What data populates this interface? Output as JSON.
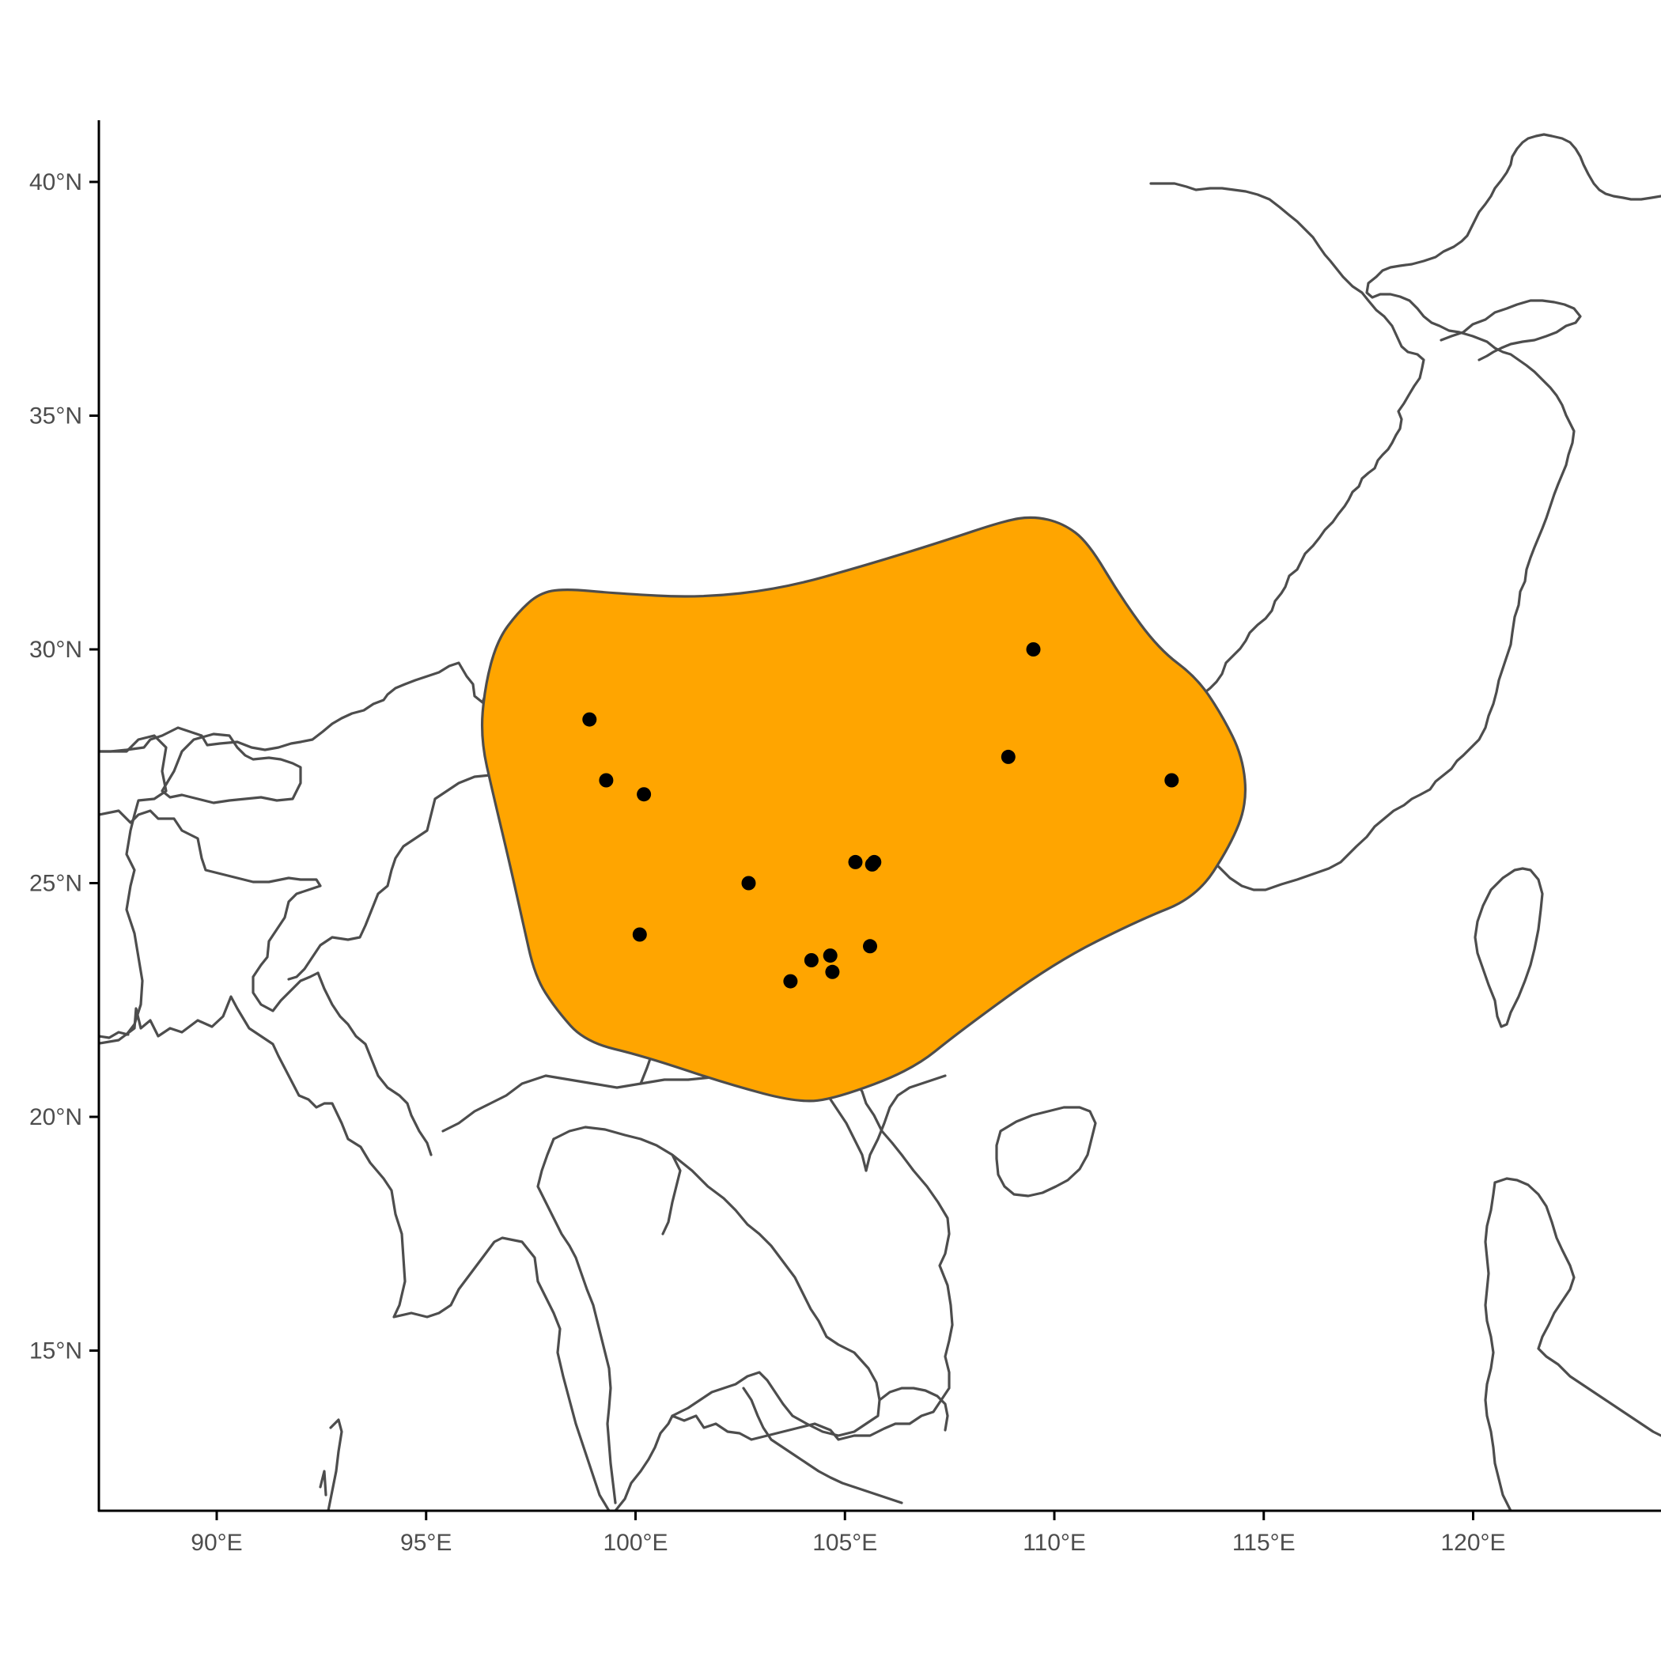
{
  "map": {
    "extent": {
      "lon": [
        87.2,
        124.5
      ],
      "lat": [
        11.7,
        41.3
      ]
    },
    "range": {
      "fill": "#FFA500",
      "stroke": "#4d4d4d",
      "outline": [
        [
          98.3,
          31.3
        ],
        [
          99.5,
          31.2
        ],
        [
          101.5,
          31.1
        ],
        [
          103.5,
          31.3
        ],
        [
          105.5,
          31.8
        ],
        [
          107.3,
          32.3
        ],
        [
          108.8,
          32.75
        ],
        [
          109.5,
          32.85
        ],
        [
          110.2,
          32.7
        ],
        [
          110.8,
          32.3
        ],
        [
          111.6,
          31.1
        ],
        [
          112.5,
          30.0
        ],
        [
          113.4,
          29.4
        ],
        [
          114.0,
          28.6
        ],
        [
          114.5,
          27.7
        ],
        [
          114.6,
          26.7
        ],
        [
          114.2,
          25.8
        ],
        [
          113.4,
          24.7
        ],
        [
          112.0,
          24.2
        ],
        [
          110.0,
          23.3
        ],
        [
          107.7,
          21.8
        ],
        [
          106.6,
          21.0
        ],
        [
          104.8,
          20.4
        ],
        [
          103.9,
          20.3
        ],
        [
          102.2,
          20.7
        ],
        [
          100.2,
          21.3
        ],
        [
          98.8,
          21.6
        ],
        [
          98.1,
          22.3
        ],
        [
          97.6,
          23.0
        ],
        [
          97.3,
          24.2
        ],
        [
          97.0,
          25.4
        ],
        [
          96.6,
          26.9
        ],
        [
          96.3,
          28.1
        ],
        [
          96.4,
          29.2
        ],
        [
          96.7,
          30.2
        ],
        [
          97.2,
          30.8
        ],
        [
          97.7,
          31.2
        ]
      ]
    },
    "points": {
      "color": "#000000",
      "coords": [
        [
          109.5,
          30.0
        ],
        [
          98.9,
          28.5
        ],
        [
          108.9,
          27.7
        ],
        [
          112.8,
          27.2
        ],
        [
          99.3,
          27.2
        ],
        [
          100.2,
          26.9
        ],
        [
          105.25,
          25.45
        ],
        [
          105.65,
          25.4
        ],
        [
          105.7,
          25.45
        ],
        [
          102.7,
          25.0
        ],
        [
          100.1,
          23.9
        ],
        [
          105.6,
          23.65
        ],
        [
          104.2,
          23.35
        ],
        [
          104.65,
          23.45
        ],
        [
          104.7,
          23.1
        ],
        [
          103.7,
          22.9
        ]
      ]
    }
  },
  "axes": {
    "x_ticks": [
      {
        "value": 90,
        "label": "90°E"
      },
      {
        "value": 95,
        "label": "95°E"
      },
      {
        "value": 100,
        "label": "100°E"
      },
      {
        "value": 105,
        "label": "105°E"
      },
      {
        "value": 110,
        "label": "110°E"
      },
      {
        "value": 115,
        "label": "115°E"
      },
      {
        "value": 120,
        "label": "120°E"
      }
    ],
    "y_ticks": [
      {
        "value": 40,
        "label": "40°N"
      },
      {
        "value": 35,
        "label": "35°N"
      },
      {
        "value": 30,
        "label": "30°N"
      },
      {
        "value": 25,
        "label": "25°N"
      },
      {
        "value": 20,
        "label": "20°N"
      },
      {
        "value": 15,
        "label": "15°N"
      }
    ]
  }
}
